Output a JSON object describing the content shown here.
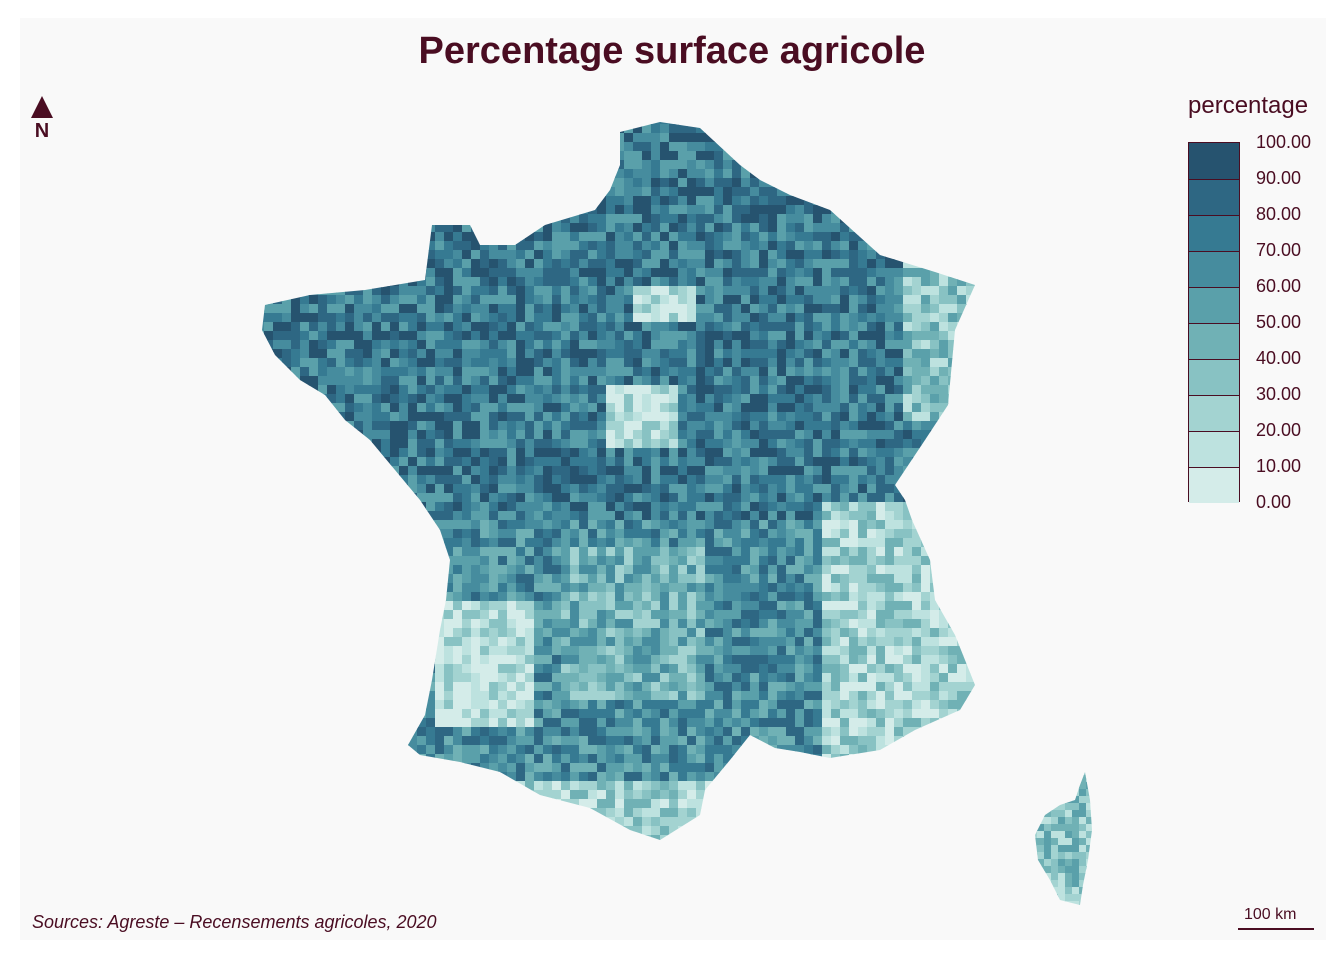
{
  "map": {
    "title": "Percentage surface agricole",
    "north_label": "N",
    "source": "Sources: Agreste – Recensements agricoles, 2020",
    "scale_label": "100 km"
  },
  "legend": {
    "title": "percentage",
    "labels": [
      "100.00",
      "90.00",
      "80.00",
      "70.00",
      "60.00",
      "50.00",
      "40.00",
      "30.00",
      "20.00",
      "10.00",
      "0.00"
    ],
    "colors": [
      "#26536f",
      "#2e6783",
      "#367a92",
      "#468c9e",
      "#5aa0aa",
      "#70b1b5",
      "#88c2c3",
      "#a3d3d1",
      "#bde2df",
      "#d4ece9"
    ]
  },
  "colors": {
    "text": "#4a0d22",
    "background": "#f9f9f9"
  }
}
